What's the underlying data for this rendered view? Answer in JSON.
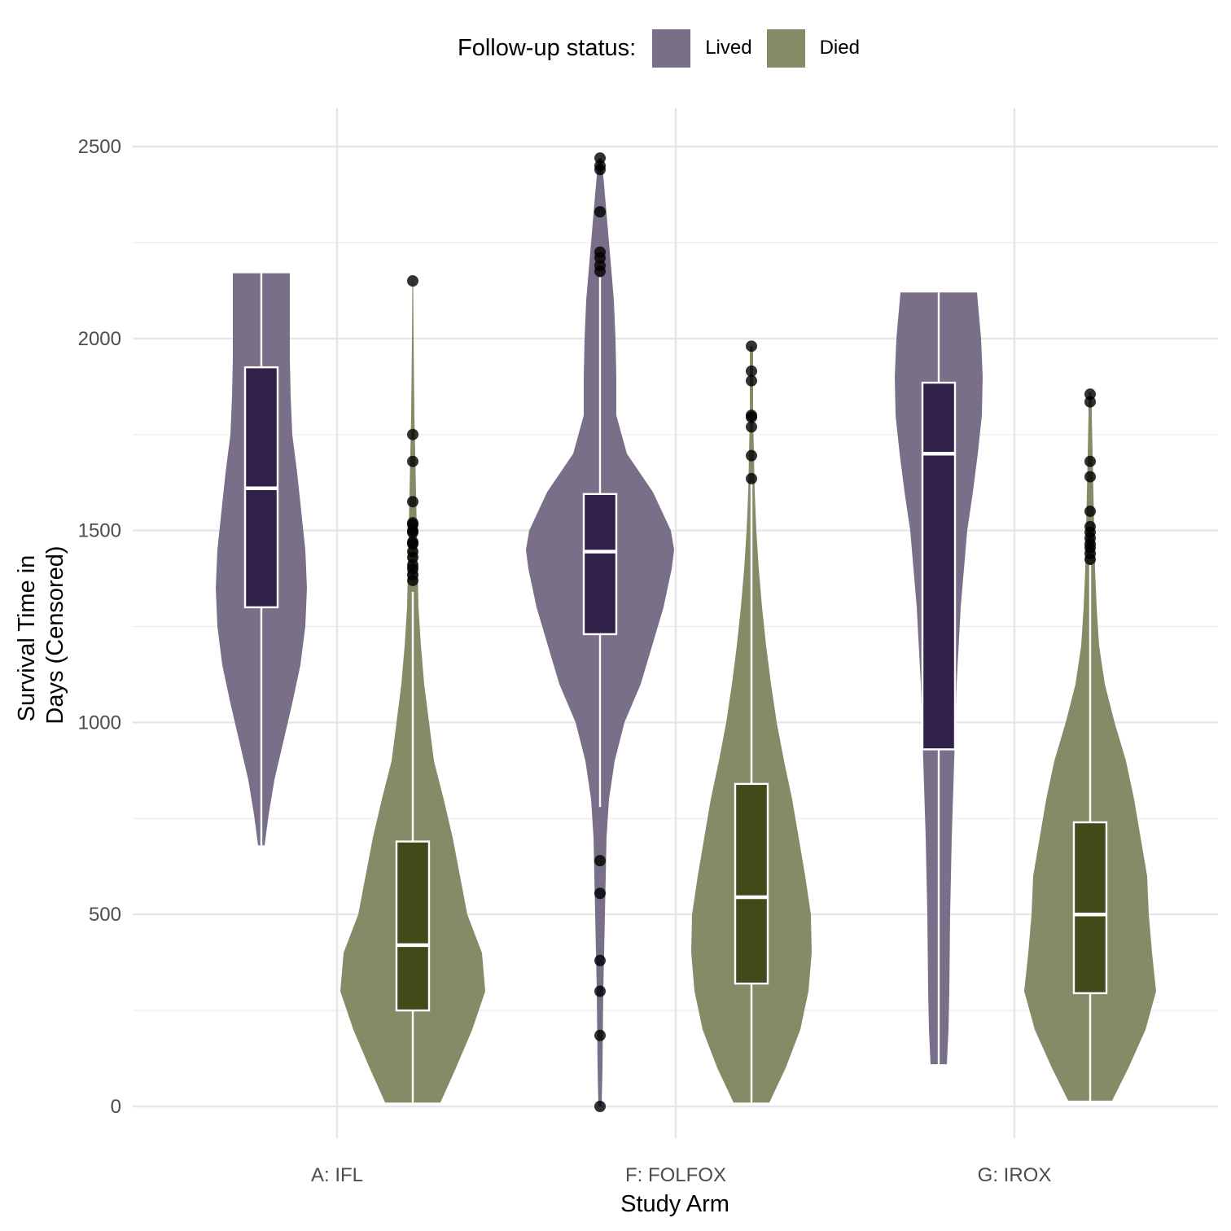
{
  "chart_data": {
    "type": "violin",
    "legend": {
      "title": "Follow-up status:",
      "placement": "top",
      "entries": [
        {
          "label": "Lived",
          "color": "#7a6f89",
          "dark": "#32224a"
        },
        {
          "label": "Died",
          "color": "#868b67",
          "dark": "#424a1a"
        }
      ]
    },
    "xlabel": "Study Arm",
    "ylabel_lines": [
      "Survival Time in",
      "Days (Censored)"
    ],
    "ylim": [
      -100,
      2600
    ],
    "yticks": [
      0,
      500,
      1000,
      1500,
      2000,
      2500
    ],
    "ytick_labels": [
      "0",
      "500",
      "1000",
      "1500",
      "2000",
      "2500"
    ],
    "categories": [
      "A: IFL",
      "F: FOLFOX",
      "G: IROX"
    ],
    "grid": true,
    "groups": [
      {
        "arm": "A: IFL",
        "status": "Lived",
        "box": {
          "min": 680,
          "q1": 1300,
          "median": 1610,
          "q3": 1925,
          "max": 2170
        },
        "violin": [
          [
            680,
            4
          ],
          [
            760,
            9
          ],
          [
            850,
            16
          ],
          [
            950,
            27
          ],
          [
            1050,
            38
          ],
          [
            1150,
            48
          ],
          [
            1250,
            54
          ],
          [
            1350,
            56
          ],
          [
            1450,
            54
          ],
          [
            1550,
            49
          ],
          [
            1650,
            44
          ],
          [
            1750,
            38
          ],
          [
            1850,
            36
          ],
          [
            1950,
            35
          ],
          [
            2050,
            35
          ],
          [
            2170,
            35
          ]
        ],
        "outliers": []
      },
      {
        "arm": "A: IFL",
        "status": "Died",
        "box": {
          "min": 10,
          "q1": 250,
          "median": 420,
          "q3": 690,
          "max": 1340
        },
        "violin": [
          [
            10,
            34
          ],
          [
            100,
            53
          ],
          [
            200,
            73
          ],
          [
            300,
            89
          ],
          [
            400,
            85
          ],
          [
            500,
            67
          ],
          [
            600,
            58
          ],
          [
            700,
            49
          ],
          [
            800,
            38
          ],
          [
            900,
            26
          ],
          [
            1000,
            20
          ],
          [
            1100,
            14
          ],
          [
            1200,
            10
          ],
          [
            1300,
            7
          ],
          [
            1400,
            6
          ],
          [
            1500,
            5
          ],
          [
            1600,
            4
          ],
          [
            1700,
            3
          ],
          [
            1800,
            2
          ],
          [
            1900,
            1.5
          ],
          [
            2000,
            1
          ],
          [
            2150,
            0.5
          ]
        ],
        "outliers": [
          1370,
          1385,
          1400,
          1410,
          1430,
          1445,
          1465,
          1470,
          1495,
          1500,
          1515,
          1520,
          1575,
          1680,
          1750,
          2150
        ]
      },
      {
        "arm": "F: FOLFOX",
        "status": "Lived",
        "box": {
          "min": 780,
          "q1": 1230,
          "median": 1445,
          "q3": 1595,
          "max": 2160
        },
        "violin": [
          [
            0,
            2
          ],
          [
            100,
            3
          ],
          [
            300,
            4
          ],
          [
            500,
            6
          ],
          [
            700,
            8
          ],
          [
            800,
            11
          ],
          [
            900,
            18
          ],
          [
            1000,
            30
          ],
          [
            1100,
            50
          ],
          [
            1200,
            64
          ],
          [
            1300,
            78
          ],
          [
            1400,
            88
          ],
          [
            1450,
            91
          ],
          [
            1500,
            87
          ],
          [
            1600,
            65
          ],
          [
            1700,
            33
          ],
          [
            1800,
            20
          ],
          [
            1900,
            20
          ],
          [
            2000,
            19
          ],
          [
            2100,
            17
          ],
          [
            2200,
            13
          ],
          [
            2300,
            9
          ],
          [
            2400,
            5
          ],
          [
            2470,
            2
          ]
        ],
        "outliers": [
          0,
          185,
          300,
          380,
          555,
          640,
          2175,
          2190,
          2210,
          2225,
          2330,
          2440,
          2450,
          2470
        ]
      },
      {
        "arm": "F: FOLFOX",
        "status": "Died",
        "box": {
          "min": 10,
          "q1": 320,
          "median": 545,
          "q3": 840,
          "max": 1625
        },
        "violin": [
          [
            10,
            22
          ],
          [
            100,
            42
          ],
          [
            200,
            60
          ],
          [
            300,
            70
          ],
          [
            400,
            74
          ],
          [
            500,
            73
          ],
          [
            600,
            66
          ],
          [
            700,
            58
          ],
          [
            800,
            50
          ],
          [
            900,
            40
          ],
          [
            1000,
            31
          ],
          [
            1100,
            24
          ],
          [
            1200,
            18
          ],
          [
            1300,
            13
          ],
          [
            1400,
            9
          ],
          [
            1500,
            6
          ],
          [
            1600,
            4
          ],
          [
            1700,
            3
          ],
          [
            1800,
            2
          ],
          [
            1900,
            2
          ],
          [
            1980,
            2
          ]
        ],
        "outliers": [
          1635,
          1695,
          1770,
          1795,
          1800,
          1890,
          1915,
          1980
        ]
      },
      {
        "arm": "G: IROX",
        "status": "Lived",
        "box": {
          "min": 110,
          "q1": 930,
          "median": 1700,
          "q3": 1885,
          "max": 2120
        },
        "violin": [
          [
            110,
            10
          ],
          [
            200,
            12
          ],
          [
            300,
            13
          ],
          [
            500,
            14
          ],
          [
            700,
            16
          ],
          [
            900,
            19
          ],
          [
            1100,
            22
          ],
          [
            1300,
            27
          ],
          [
            1500,
            35
          ],
          [
            1600,
            42
          ],
          [
            1700,
            48
          ],
          [
            1800,
            53
          ],
          [
            1900,
            54
          ],
          [
            2000,
            52
          ],
          [
            2120,
            47
          ]
        ],
        "outliers": []
      },
      {
        "arm": "G: IROX",
        "status": "Died",
        "box": {
          "min": 15,
          "q1": 295,
          "median": 500,
          "q3": 740,
          "max": 1410
        },
        "violin": [
          [
            15,
            27
          ],
          [
            100,
            47
          ],
          [
            200,
            68
          ],
          [
            300,
            81
          ],
          [
            400,
            76
          ],
          [
            500,
            72
          ],
          [
            600,
            70
          ],
          [
            700,
            62
          ],
          [
            800,
            54
          ],
          [
            900,
            44
          ],
          [
            1000,
            30
          ],
          [
            1100,
            18
          ],
          [
            1200,
            11
          ],
          [
            1300,
            8
          ],
          [
            1400,
            6
          ],
          [
            1500,
            5
          ],
          [
            1600,
            4
          ],
          [
            1700,
            3
          ],
          [
            1800,
            2
          ],
          [
            1860,
            2
          ]
        ],
        "outliers": [
          1425,
          1440,
          1455,
          1465,
          1480,
          1495,
          1510,
          1550,
          1640,
          1680,
          1835,
          1855
        ]
      }
    ]
  }
}
